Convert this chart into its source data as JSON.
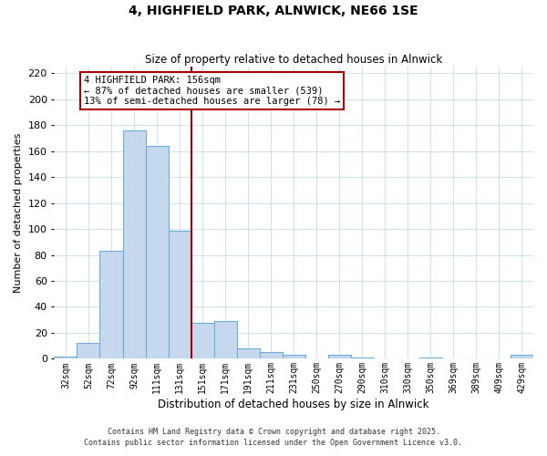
{
  "title": "4, HIGHFIELD PARK, ALNWICK, NE66 1SE",
  "subtitle": "Size of property relative to detached houses in Alnwick",
  "xlabel": "Distribution of detached houses by size in Alnwick",
  "ylabel": "Number of detached properties",
  "bar_labels": [
    "32sqm",
    "52sqm",
    "72sqm",
    "92sqm",
    "111sqm",
    "131sqm",
    "151sqm",
    "171sqm",
    "191sqm",
    "211sqm",
    "231sqm",
    "250sqm",
    "270sqm",
    "290sqm",
    "310sqm",
    "330sqm",
    "350sqm",
    "369sqm",
    "389sqm",
    "409sqm",
    "429sqm"
  ],
  "bar_values": [
    2,
    12,
    83,
    176,
    164,
    99,
    28,
    29,
    8,
    5,
    3,
    0,
    3,
    1,
    0,
    0,
    1,
    0,
    0,
    0,
    3
  ],
  "bar_color": "#c5d8ee",
  "bar_edge_color": "#6baed6",
  "vline_color": "#aa0000",
  "annotation_title": "4 HIGHFIELD PARK: 156sqm",
  "annotation_line1": "← 87% of detached houses are smaller (539)",
  "annotation_line2": "13% of semi-detached houses are larger (78) →",
  "annotation_box_color": "#ffffff",
  "annotation_box_edge": "#aa0000",
  "ylim": [
    0,
    225
  ],
  "yticks": [
    0,
    20,
    40,
    60,
    80,
    100,
    120,
    140,
    160,
    180,
    200,
    220
  ],
  "footer1": "Contains HM Land Registry data © Crown copyright and database right 2025.",
  "footer2": "Contains public sector information licensed under the Open Government Licence v3.0.",
  "bg_color": "#ffffff",
  "grid_color": "#c8ddf0"
}
